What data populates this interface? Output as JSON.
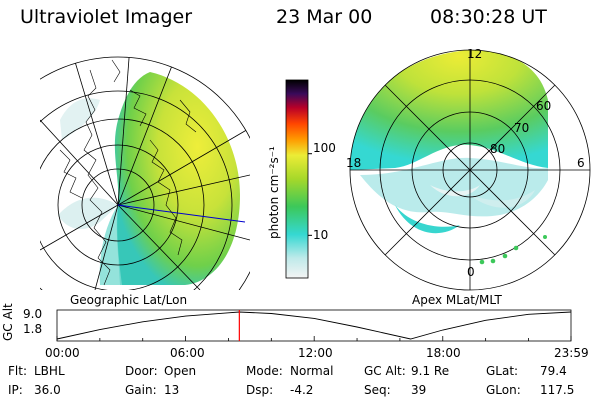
{
  "header": {
    "title": "Ultraviolet Imager",
    "date": "23 Mar 00",
    "time": "08:30:28 UT"
  },
  "left_panel": {
    "caption": "Geographic Lat/Lon"
  },
  "right_panel": {
    "caption": "Apex MLat/MLT",
    "mlt_labels": {
      "top": "12",
      "left": "18",
      "right": "6",
      "bottom": "0"
    },
    "lat_labels": [
      "60",
      "70",
      "80"
    ]
  },
  "colorbar": {
    "unit_label": "photon cm⁻²s⁻¹",
    "tick_labels": [
      "100",
      "10"
    ],
    "tick_values": [
      100,
      10
    ],
    "scale": "log",
    "range": [
      3,
      800
    ],
    "colors": [
      "#f4f4f4",
      "#bfeaea",
      "#35d8d2",
      "#3cc85a",
      "#a6d82a",
      "#ecec36",
      "#ff9a00",
      "#ff4500",
      "#b80028",
      "#3a0a5a",
      "#000000"
    ]
  },
  "timeline": {
    "y_label": "GC Alt",
    "y_ticks": [
      "9.0",
      "1.8"
    ],
    "x_ticks": [
      "00:00",
      "06:00",
      "12:00",
      "18:00",
      "23:59"
    ],
    "current_time_hours": 8.508,
    "marker_color": "#ff0000",
    "trace": [
      {
        "t": 0,
        "alt": 1.8
      },
      {
        "t": 2,
        "alt": 4.3
      },
      {
        "t": 4,
        "alt": 6.4
      },
      {
        "t": 6,
        "alt": 7.9
      },
      {
        "t": 8,
        "alt": 8.8
      },
      {
        "t": 8.5,
        "alt": 9.0
      },
      {
        "t": 10,
        "alt": 8.6
      },
      {
        "t": 12,
        "alt": 7.3
      },
      {
        "t": 14,
        "alt": 5.0
      },
      {
        "t": 16.5,
        "alt": 1.8
      },
      {
        "t": 18,
        "alt": 4.2
      },
      {
        "t": 20,
        "alt": 6.8
      },
      {
        "t": 22,
        "alt": 8.4
      },
      {
        "t": 23.983,
        "alt": 9.0
      }
    ]
  },
  "status": {
    "row1": [
      {
        "label": "Flt:",
        "value": "LBHL"
      },
      {
        "label": "Door:",
        "value": "Open"
      },
      {
        "label": "Mode:",
        "value": "Normal"
      },
      {
        "label": "GC Alt:",
        "value": "9.1 Re"
      },
      {
        "label": "GLat:",
        "value": "79.4"
      }
    ],
    "row2": [
      {
        "label": "IP:",
        "value": "36.0"
      },
      {
        "label": "Gain:",
        "value": "13"
      },
      {
        "label": "Dsp:",
        "value": "-4.2"
      },
      {
        "label": "Seq:",
        "value": "39"
      },
      {
        "label": "GLon:",
        "value": "117.5"
      }
    ]
  }
}
